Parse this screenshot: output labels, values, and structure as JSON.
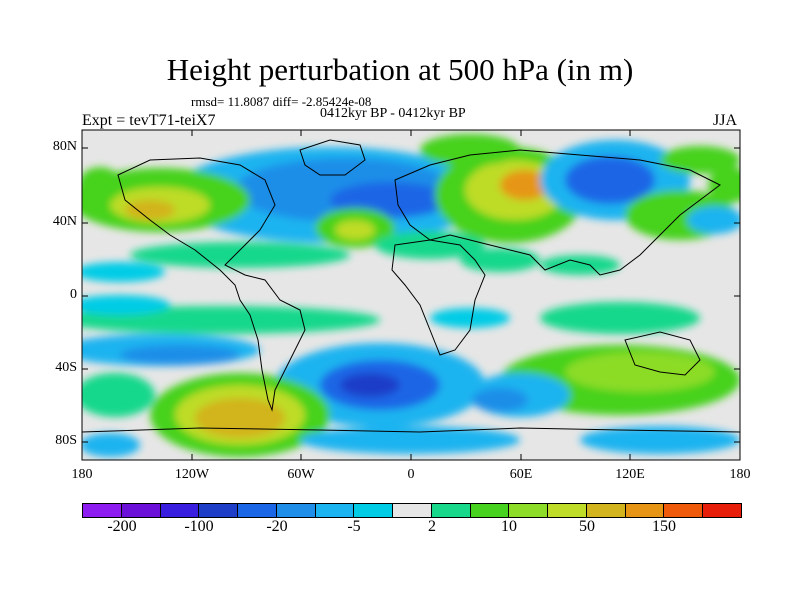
{
  "title": "Height perturbation at 500 hPa (in m)",
  "rmsd_line": "rmsd= 11.8087 diff= -2.85424e-08",
  "period": "0412kyr BP - 0412kyr BP",
  "experiment": "Expt = tevT71-teiX7",
  "season": "JJA",
  "lat_labels": [
    "80N",
    "40N",
    "0",
    "40S",
    "80S"
  ],
  "lon_labels": [
    "180",
    "120W",
    "60W",
    "0",
    "60E",
    "120E",
    "180"
  ],
  "colorbar": {
    "colors": [
      "#8c1cf0",
      "#6a10d8",
      "#3a1ee0",
      "#1e3ec8",
      "#1a66e6",
      "#1e8ee8",
      "#1cb4f0",
      "#00cce6",
      "#e6e6e6",
      "#18d88c",
      "#46d21e",
      "#8cdc28",
      "#bedc28",
      "#d2b41e",
      "#e69614",
      "#ee5a0a",
      "#e61e0a"
    ],
    "labels": [
      "-200",
      "-100",
      "-20",
      "-5",
      "2",
      "10",
      "50",
      "150"
    ]
  }
}
